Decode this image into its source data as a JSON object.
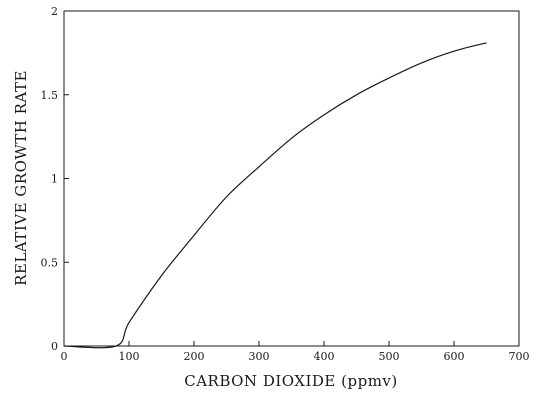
{
  "chart_data": {
    "type": "line",
    "title": "",
    "xlabel": "CARBON DIOXIDE (ppmv)",
    "ylabel": "RELATIVE GROWTH RATE",
    "xlim": [
      0,
      700
    ],
    "ylim": [
      0,
      2
    ],
    "xticks": [
      0,
      100,
      200,
      300,
      400,
      500,
      600,
      700
    ],
    "yticks": [
      0,
      0.5,
      1,
      1.5,
      2
    ],
    "xtick_labels": [
      "0",
      "100",
      "200",
      "300",
      "400",
      "500",
      "600",
      "700"
    ],
    "ytick_labels": [
      "0",
      "0.5",
      "1",
      "1.5",
      "2"
    ],
    "grid": false,
    "series": [
      {
        "x": [
          0,
          80,
          100,
          150,
          200,
          250,
          300,
          350,
          400,
          450,
          500,
          550,
          600,
          650
        ],
        "y": [
          0,
          0,
          0.14,
          0.42,
          0.66,
          0.89,
          1.07,
          1.24,
          1.38,
          1.5,
          1.6,
          1.69,
          1.76,
          1.81
        ]
      }
    ]
  }
}
